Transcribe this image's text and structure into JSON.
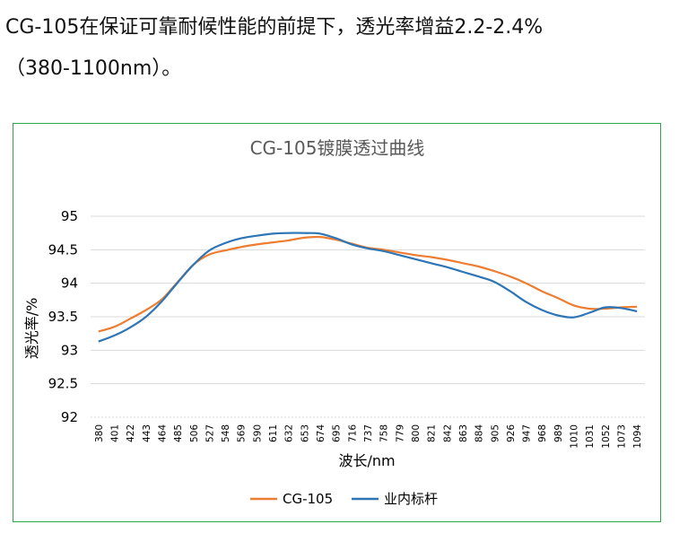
{
  "intro": {
    "line1": "CG-105在保证可靠耐候性能的前提下，透光率增益2.2-2.4%",
    "line2": "（380-1100nm）。"
  },
  "colors": {
    "series1": "#ED7D31",
    "series2": "#2E75B6",
    "frame": "#2AA84A",
    "grid": "#D9D9D9"
  },
  "chart_data": {
    "type": "line",
    "title": "CG-105镀膜透过曲线",
    "xlabel": "波长/nm",
    "ylabel": "透光率/%",
    "ylim": [
      92,
      95
    ],
    "yticks": [
      "92",
      "92.5",
      "93",
      "93.5",
      "94",
      "94.5",
      "95"
    ],
    "grid": true,
    "legend_position": "bottom",
    "x": [
      380,
      401,
      422,
      443,
      464,
      485,
      506,
      527,
      548,
      569,
      590,
      611,
      632,
      653,
      674,
      695,
      716,
      737,
      758,
      779,
      800,
      821,
      842,
      863,
      884,
      905,
      926,
      947,
      968,
      989,
      1010,
      1031,
      1052,
      1073,
      1094
    ],
    "series": [
      {
        "name": "CG-105",
        "values": [
          93.28,
          93.35,
          93.47,
          93.6,
          93.76,
          94.02,
          94.28,
          94.43,
          94.49,
          94.54,
          94.58,
          94.61,
          94.64,
          94.68,
          94.69,
          94.65,
          94.59,
          94.53,
          94.5,
          94.46,
          94.42,
          94.39,
          94.35,
          94.3,
          94.25,
          94.18,
          94.1,
          94.0,
          93.88,
          93.78,
          93.67,
          93.62,
          93.62,
          93.64,
          93.65
        ]
      },
      {
        "name": "业内标杆",
        "values": [
          93.13,
          93.22,
          93.34,
          93.5,
          93.73,
          94.01,
          94.28,
          94.49,
          94.6,
          94.67,
          94.71,
          94.74,
          94.75,
          94.75,
          94.74,
          94.67,
          94.58,
          94.52,
          94.48,
          94.42,
          94.36,
          94.3,
          94.24,
          94.17,
          94.1,
          94.02,
          93.88,
          93.72,
          93.6,
          93.52,
          93.49,
          93.56,
          93.64,
          93.63,
          93.58
        ]
      }
    ]
  }
}
